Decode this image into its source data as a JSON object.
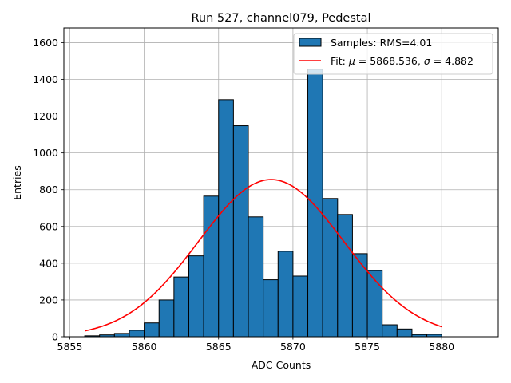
{
  "chart_data": {
    "type": "bar",
    "title": "Run 527, channel079, Pedestal",
    "xlabel": "ADC Counts",
    "ylabel": "Entries",
    "xlim": [
      5854.6,
      5883.8
    ],
    "ylim": [
      0,
      1680
    ],
    "grid": true,
    "legend_position": "top-right",
    "x_ticks": [
      5855,
      5860,
      5865,
      5870,
      5875,
      5880
    ],
    "y_ticks": [
      0,
      200,
      400,
      600,
      800,
      1000,
      1200,
      1400,
      1600
    ],
    "histogram": {
      "name": "Samples: RMS=4.01",
      "color": "#1f77b4",
      "bin_width": 1,
      "bin_starts": [
        5856,
        5857,
        5858,
        5859,
        5860,
        5861,
        5862,
        5863,
        5864,
        5865,
        5866,
        5867,
        5868,
        5869,
        5870,
        5871,
        5872,
        5873,
        5874,
        5875,
        5876,
        5877,
        5878,
        5879
      ],
      "values": [
        5,
        10,
        18,
        35,
        75,
        200,
        325,
        440,
        765,
        1290,
        1148,
        652,
        310,
        465,
        330,
        1455,
        752,
        665,
        452,
        360,
        65,
        42,
        12,
        13
      ]
    },
    "fit": {
      "name": "Fit: μ = 5868.536, σ = 4.882",
      "legend_prefix": "Fit: ",
      "legend_mu": "μ",
      "legend_mu_value": " = 5868.536, ",
      "legend_sigma": "σ",
      "legend_sigma_value": " = 4.882",
      "color": "#ff0000",
      "mu": 5868.536,
      "sigma": 4.882,
      "amplitude": 855,
      "x_range": [
        5856,
        5880
      ]
    }
  }
}
